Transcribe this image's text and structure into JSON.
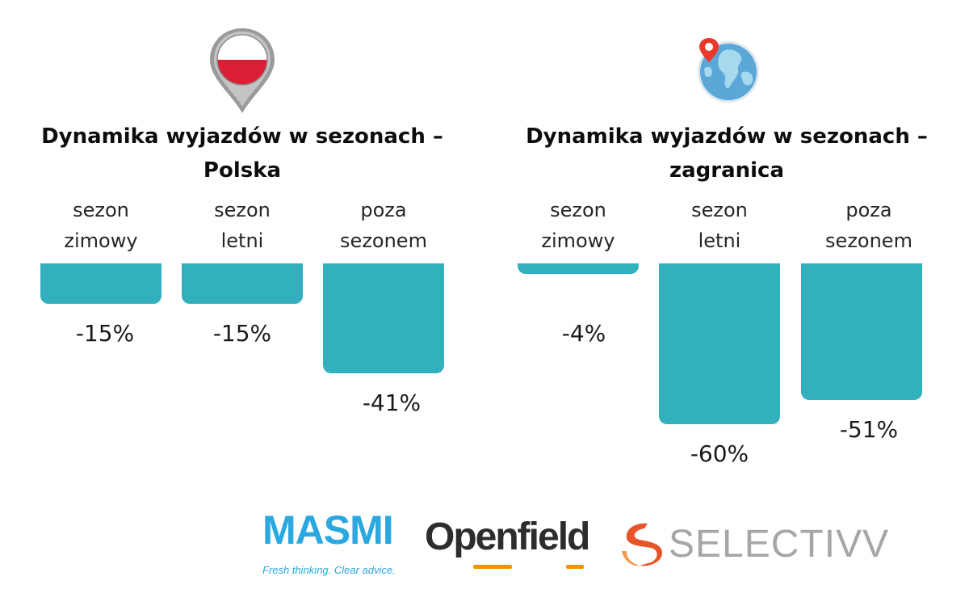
{
  "chart_data": [
    {
      "type": "bar",
      "title": "Dynamika wyjazdów w sezonach – Polska",
      "title_lines": [
        "Dynamika wyjazdów w sezonach –",
        "Polska"
      ],
      "categories": [
        "sezon zimowy",
        "sezon letni",
        "poza sezonem"
      ],
      "category_lines": [
        [
          "sezon",
          "zimowy"
        ],
        [
          "sezon",
          "letni"
        ],
        [
          "poza",
          "sezonem"
        ]
      ],
      "values": [
        -15,
        -15,
        -41
      ],
      "value_labels": [
        "-15%",
        "-15%",
        "-41%"
      ],
      "unit": "%",
      "ylim": [
        -60,
        0
      ],
      "color": "#32b0bd",
      "icon": "poland-flag-pin-icon"
    },
    {
      "type": "bar",
      "title": "Dynamika wyjazdów w sezonach – zagranica",
      "title_lines": [
        "Dynamika wyjazdów w sezonach –",
        "zagranica"
      ],
      "categories": [
        "sezon zimowy",
        "sezon letni",
        "poza sezonem"
      ],
      "category_lines": [
        [
          "sezon",
          "zimowy"
        ],
        [
          "sezon",
          "letni"
        ],
        [
          "poza",
          "sezonem"
        ]
      ],
      "values": [
        -4,
        -60,
        -51
      ],
      "value_labels": [
        "-4%",
        "-60%",
        "-51%"
      ],
      "unit": "%",
      "ylim": [
        -60,
        0
      ],
      "color": "#32b0bd",
      "icon": "globe-pin-icon"
    }
  ],
  "logos": {
    "masmi": {
      "name": "MASMI",
      "tagline": "Fresh thinking. Clear advice.",
      "color": "#2aa8df"
    },
    "openfield": {
      "name": "Openfield",
      "accent": "#f39200"
    },
    "selectivv": {
      "name": "SELECTIVV",
      "color": "#a6a6a6",
      "accent": "#e8542a"
    }
  }
}
